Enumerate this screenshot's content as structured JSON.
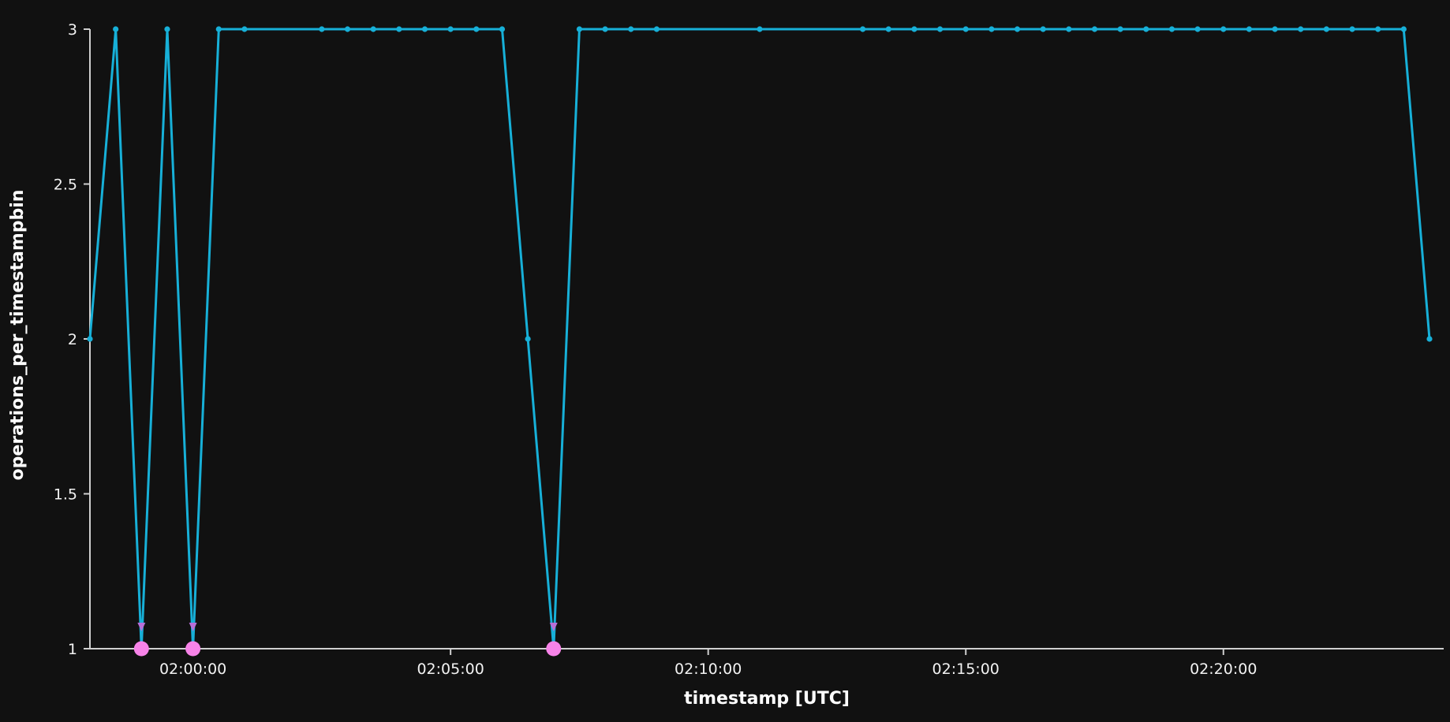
{
  "chart_data": {
    "type": "line",
    "xlabel": "timestamp [UTC]",
    "ylabel": "operations_per_timestampbin",
    "x_unit": "time (HH:MM:SS, UTC)",
    "x_range": [
      "01:58:00",
      "02:24:00"
    ],
    "ylim": [
      1,
      3
    ],
    "x_ticks": [
      "02:00:00",
      "02:05:00",
      "02:10:00",
      "02:15:00",
      "02:20:00"
    ],
    "y_ticks": [
      "1",
      "1.5",
      "2",
      "2.5",
      "3"
    ],
    "grid": false,
    "colors": {
      "background": "#111111",
      "line": "#17b0d8",
      "anomaly": "#f783e8",
      "anomaly_marker": "#b86fd8",
      "axis": "#cfcfcf"
    },
    "series": [
      {
        "points": [
          [
            "01:58:00",
            2
          ],
          [
            "01:58:30",
            3
          ],
          [
            "01:59:00",
            1
          ],
          [
            "01:59:30",
            3
          ],
          [
            "02:00:00",
            1
          ],
          [
            "02:00:30",
            3
          ],
          [
            "02:01:00",
            3
          ],
          [
            "02:02:30",
            3
          ],
          [
            "02:03:00",
            3
          ],
          [
            "02:03:30",
            3
          ],
          [
            "02:04:00",
            3
          ],
          [
            "02:04:30",
            3
          ],
          [
            "02:05:00",
            3
          ],
          [
            "02:05:30",
            3
          ],
          [
            "02:06:00",
            3
          ],
          [
            "02:06:30",
            2
          ],
          [
            "02:07:00",
            1
          ],
          [
            "02:07:30",
            3
          ],
          [
            "02:08:00",
            3
          ],
          [
            "02:08:30",
            3
          ],
          [
            "02:09:00",
            3
          ],
          [
            "02:11:00",
            3
          ],
          [
            "02:13:00",
            3
          ],
          [
            "02:13:30",
            3
          ],
          [
            "02:14:00",
            3
          ],
          [
            "02:14:30",
            3
          ],
          [
            "02:15:00",
            3
          ],
          [
            "02:15:30",
            3
          ],
          [
            "02:16:00",
            3
          ],
          [
            "02:16:30",
            3
          ],
          [
            "02:17:00",
            3
          ],
          [
            "02:17:30",
            3
          ],
          [
            "02:18:00",
            3
          ],
          [
            "02:18:30",
            3
          ],
          [
            "02:19:00",
            3
          ],
          [
            "02:19:30",
            3
          ],
          [
            "02:20:00",
            3
          ],
          [
            "02:20:30",
            3
          ],
          [
            "02:21:00",
            3
          ],
          [
            "02:21:30",
            3
          ],
          [
            "02:22:00",
            3
          ],
          [
            "02:22:30",
            3
          ],
          [
            "02:23:00",
            3
          ],
          [
            "02:23:30",
            3
          ],
          [
            "02:24:00",
            2
          ]
        ]
      }
    ],
    "anomalies": [
      [
        "01:59:00",
        1
      ],
      [
        "02:00:00",
        1
      ],
      [
        "02:07:00",
        1
      ]
    ]
  }
}
